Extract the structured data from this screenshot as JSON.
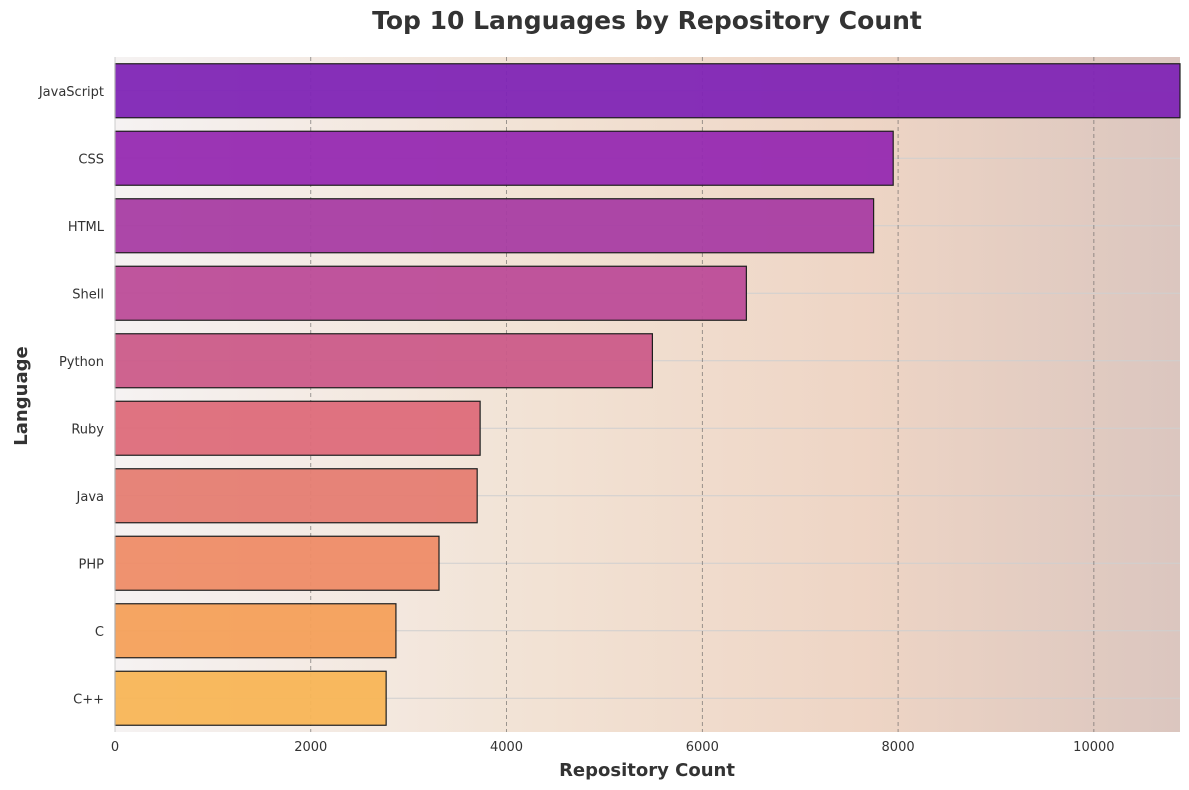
{
  "chart_data": {
    "type": "bar",
    "orientation": "horizontal",
    "title": "Top 10 Languages by Repository Count",
    "xlabel": "Repository Count",
    "ylabel": "Language",
    "categories": [
      "JavaScript",
      "CSS",
      "HTML",
      "Shell",
      "Python",
      "Ruby",
      "Java",
      "PHP",
      "C",
      "C++"
    ],
    "values": [
      10900,
      7950,
      7750,
      6450,
      5490,
      3730,
      3700,
      3310,
      2870,
      2770
    ],
    "xlim": [
      0,
      10880
    ],
    "xticks": [
      0,
      2000,
      4000,
      6000,
      8000,
      10000
    ],
    "grid": true,
    "bar_colors": [
      "#7f25b5",
      "#962ab1",
      "#a83da3",
      "#bc4c98",
      "#cb5b89",
      "#dd6b7a",
      "#e57d72",
      "#ee8c67",
      "#f4a05a",
      "#f8b556"
    ],
    "background_gradient": [
      "#f5f2f2",
      "#f2e2d4",
      "#eed5c5",
      "#dbc6bf"
    ]
  }
}
